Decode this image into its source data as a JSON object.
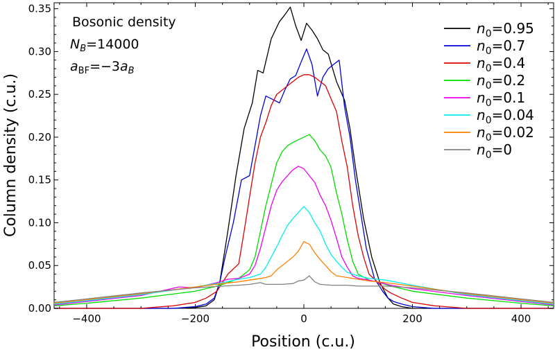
{
  "chart_data": {
    "type": "line",
    "title": "",
    "xlabel": "Position (c.u.)",
    "ylabel": "Column density (c.u.)",
    "xlim": [
      -460,
      460
    ],
    "ylim": [
      0,
      0.357
    ],
    "xticks": [
      -400,
      -200,
      0,
      200,
      400
    ],
    "xtick_labels": [
      "−400",
      "−200",
      "0",
      "200",
      "400"
    ],
    "yticks": [
      0,
      0.05,
      0.1,
      0.15,
      0.2,
      0.25,
      0.3,
      0.35
    ],
    "ytick_labels": [
      "0.00",
      "0.05",
      "0.10",
      "0.15",
      "0.20",
      "0.25",
      "0.30",
      "0.35"
    ],
    "annotations": {
      "line1": "Bosonic density",
      "line2_sym": "N",
      "line2_sub": "B",
      "line2_rest": "=14000",
      "line3_a": "a",
      "line3_sub": "BF",
      "line3_mid": "=−3",
      "line3_b": "a",
      "line3_sub2": "B"
    },
    "legend_position": "top-right",
    "series": [
      {
        "name": "n0=0.95",
        "sym": "n",
        "sub": "0",
        "val": "=0.95",
        "color": "#000000",
        "x": [
          -460,
          -300,
          -240,
          -200,
          -180,
          -165,
          -155,
          -140,
          -125,
          -110,
          -95,
          -85,
          -75,
          -60,
          -45,
          -35,
          -25,
          -15,
          -5,
          5,
          15,
          25,
          35,
          45,
          60,
          75,
          85,
          95,
          110,
          125,
          140,
          155,
          165,
          180,
          200,
          240,
          300,
          460
        ],
        "y": [
          0,
          0,
          0,
          0.001,
          0.003,
          0.01,
          0.03,
          0.09,
          0.155,
          0.21,
          0.24,
          0.278,
          0.275,
          0.315,
          0.335,
          0.343,
          0.352,
          0.33,
          0.313,
          0.333,
          0.325,
          0.315,
          0.302,
          0.297,
          0.265,
          0.243,
          0.21,
          0.165,
          0.105,
          0.06,
          0.03,
          0.012,
          0.005,
          0.002,
          0,
          0,
          0,
          0
        ]
      },
      {
        "name": "n0=0.7",
        "sym": "n",
        "sub": "0",
        "val": "=0.7",
        "color": "#0000dd",
        "x": [
          -460,
          -300,
          -240,
          -200,
          -180,
          -165,
          -155,
          -145,
          -130,
          -115,
          -100,
          -90,
          -80,
          -70,
          -60,
          -45,
          -35,
          -25,
          -15,
          -5,
          5,
          15,
          25,
          35,
          45,
          55,
          65,
          75,
          85,
          95,
          105,
          115,
          130,
          145,
          155,
          165,
          180,
          200,
          240,
          300,
          460
        ],
        "y": [
          0,
          0,
          0,
          0.002,
          0.005,
          0.012,
          0.03,
          0.06,
          0.1,
          0.15,
          0.155,
          0.19,
          0.225,
          0.248,
          0.245,
          0.24,
          0.255,
          0.268,
          0.272,
          0.288,
          0.303,
          0.285,
          0.248,
          0.27,
          0.28,
          0.285,
          0.29,
          0.235,
          0.2,
          0.15,
          0.11,
          0.07,
          0.035,
          0.02,
          0.012,
          0.008,
          0.005,
          0.002,
          0,
          0,
          0
        ]
      },
      {
        "name": "n0=0.4",
        "sym": "n",
        "sub": "0",
        "val": "=0.4",
        "color": "#dd0000",
        "x": [
          -460,
          -300,
          -240,
          -200,
          -180,
          -160,
          -150,
          -140,
          -120,
          -110,
          -100,
          -90,
          -80,
          -70,
          -60,
          -50,
          -40,
          -30,
          -20,
          -10,
          0,
          10,
          20,
          30,
          40,
          50,
          60,
          70,
          80,
          90,
          100,
          110,
          120,
          140,
          150,
          160,
          180,
          200,
          240,
          300,
          460
        ],
        "y": [
          0,
          0,
          0.003,
          0.007,
          0.012,
          0.02,
          0.03,
          0.04,
          0.052,
          0.09,
          0.13,
          0.17,
          0.2,
          0.217,
          0.237,
          0.25,
          0.255,
          0.26,
          0.265,
          0.27,
          0.273,
          0.273,
          0.27,
          0.265,
          0.26,
          0.245,
          0.23,
          0.195,
          0.165,
          0.12,
          0.085,
          0.06,
          0.04,
          0.028,
          0.022,
          0.018,
          0.012,
          0.007,
          0.003,
          0,
          0
        ]
      },
      {
        "name": "n0=0.2",
        "sym": "n",
        "sub": "0",
        "val": "=0.2",
        "color": "#00dd00",
        "x": [
          -460,
          -400,
          -300,
          -200,
          -160,
          -140,
          -120,
          -100,
          -90,
          -80,
          -70,
          -60,
          -50,
          -40,
          -30,
          -20,
          -10,
          0,
          10,
          20,
          30,
          40,
          50,
          60,
          70,
          80,
          90,
          100,
          120,
          140,
          160,
          200,
          300,
          400,
          460
        ],
        "y": [
          0.003,
          0.006,
          0.012,
          0.02,
          0.026,
          0.03,
          0.035,
          0.045,
          0.06,
          0.09,
          0.12,
          0.145,
          0.17,
          0.183,
          0.19,
          0.194,
          0.197,
          0.2,
          0.203,
          0.196,
          0.185,
          0.178,
          0.165,
          0.135,
          0.11,
          0.08,
          0.055,
          0.04,
          0.033,
          0.03,
          0.026,
          0.02,
          0.012,
          0.006,
          0.003
        ]
      },
      {
        "name": "n0=0.1",
        "sym": "n",
        "sub": "0",
        "val": "=0.1",
        "color": "#ee00ee",
        "x": [
          -460,
          -400,
          -300,
          -230,
          -200,
          -160,
          -140,
          -120,
          -100,
          -90,
          -80,
          -70,
          -60,
          -50,
          -40,
          -30,
          -20,
          -10,
          0,
          10,
          20,
          30,
          40,
          50,
          60,
          70,
          80,
          90,
          100,
          120,
          140,
          160,
          200,
          300,
          400,
          460
        ],
        "y": [
          0.004,
          0.008,
          0.015,
          0.025,
          0.024,
          0.03,
          0.034,
          0.035,
          0.04,
          0.05,
          0.07,
          0.095,
          0.12,
          0.138,
          0.148,
          0.155,
          0.162,
          0.166,
          0.163,
          0.155,
          0.147,
          0.132,
          0.12,
          0.103,
          0.082,
          0.06,
          0.048,
          0.038,
          0.035,
          0.033,
          0.03,
          0.027,
          0.023,
          0.015,
          0.008,
          0.004
        ]
      },
      {
        "name": "n0=0.04",
        "sym": "n",
        "sub": "0",
        "val": "=0.04",
        "color": "#00eeee",
        "x": [
          -460,
          -400,
          -300,
          -200,
          -150,
          -120,
          -100,
          -80,
          -70,
          -60,
          -50,
          -40,
          -30,
          -20,
          -10,
          0,
          10,
          20,
          30,
          40,
          50,
          60,
          70,
          80,
          100,
          120,
          150,
          200,
          300,
          400,
          460
        ],
        "y": [
          0.005,
          0.009,
          0.016,
          0.025,
          0.03,
          0.034,
          0.036,
          0.04,
          0.048,
          0.06,
          0.072,
          0.085,
          0.097,
          0.105,
          0.112,
          0.119,
          0.112,
          0.1,
          0.09,
          0.075,
          0.063,
          0.055,
          0.048,
          0.042,
          0.038,
          0.035,
          0.033,
          0.027,
          0.016,
          0.009,
          0.005
        ]
      },
      {
        "name": "n0=0.02",
        "sym": "n",
        "sub": "0",
        "val": "=0.02",
        "color": "#ff8000",
        "x": [
          -460,
          -400,
          -300,
          -200,
          -150,
          -120,
          -100,
          -80,
          -70,
          -60,
          -50,
          -40,
          -30,
          -20,
          -10,
          0,
          10,
          20,
          30,
          40,
          50,
          60,
          80,
          100,
          120,
          150,
          200,
          300,
          400,
          460
        ],
        "y": [
          0.006,
          0.01,
          0.017,
          0.025,
          0.029,
          0.031,
          0.033,
          0.035,
          0.036,
          0.038,
          0.045,
          0.05,
          0.055,
          0.06,
          0.067,
          0.078,
          0.075,
          0.065,
          0.057,
          0.05,
          0.043,
          0.038,
          0.036,
          0.034,
          0.032,
          0.03,
          0.026,
          0.017,
          0.01,
          0.006
        ]
      },
      {
        "name": "n0=0",
        "sym": "n",
        "sub": "0",
        "val": "=0",
        "color": "#808080",
        "x": [
          -460,
          -400,
          -300,
          -200,
          -150,
          -120,
          -100,
          -80,
          -70,
          -60,
          -40,
          -20,
          -10,
          0,
          10,
          20,
          30,
          50,
          80,
          100,
          120,
          150,
          200,
          300,
          400,
          460
        ],
        "y": [
          0.007,
          0.011,
          0.018,
          0.024,
          0.026,
          0.027,
          0.028,
          0.03,
          0.028,
          0.028,
          0.028,
          0.029,
          0.032,
          0.033,
          0.038,
          0.031,
          0.028,
          0.027,
          0.027,
          0.026,
          0.026,
          0.026,
          0.024,
          0.018,
          0.011,
          0.007
        ]
      }
    ]
  }
}
